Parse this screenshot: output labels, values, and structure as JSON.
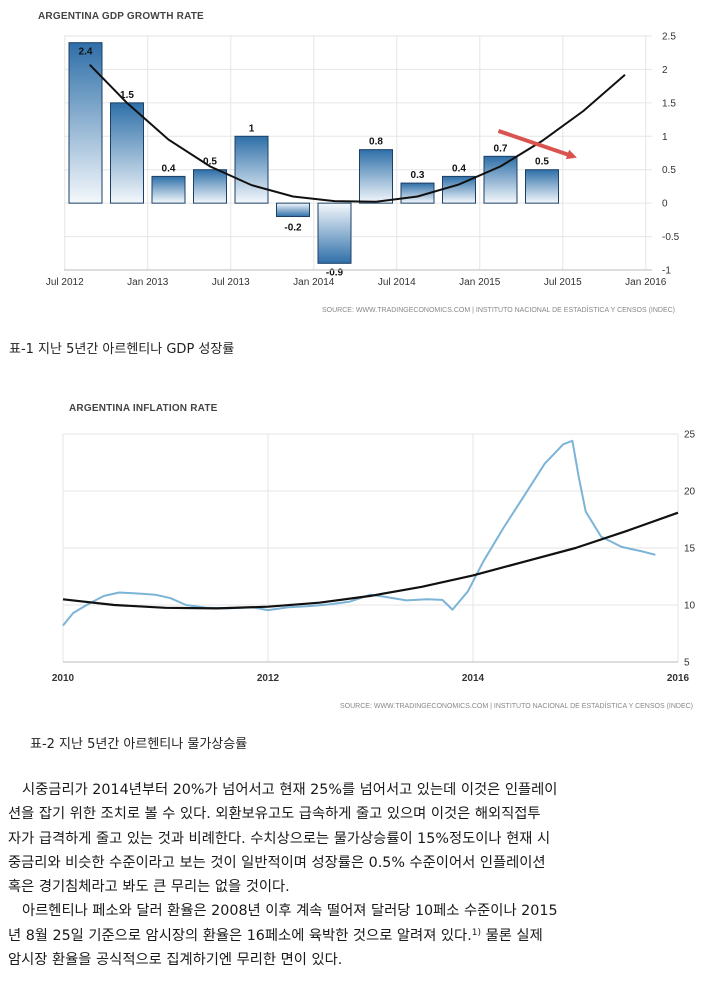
{
  "chart_data": [
    {
      "type": "bar",
      "title": "ARGENTINA GDP GROWTH RATE",
      "source": "SOURCE: WWW.TRADINGECONOMICS.COM | INSTITUTO NACIONAL DE ESTADÍSTICA Y CENSOS (INDEC)",
      "categories": [
        "2012 Q3",
        "2012 Q4",
        "2013 Q1",
        "2013 Q2",
        "2013 Q3",
        "2013 Q4",
        "2014 Q1",
        "2014 Q2",
        "2014 Q3",
        "2014 Q4",
        "2015 Q1",
        "2015 Q2"
      ],
      "values": [
        2.4,
        1.5,
        0.4,
        0.5,
        1,
        -0.2,
        -0.9,
        0.8,
        0.3,
        0.4,
        0.7,
        0.5
      ],
      "value_labels": [
        "2.4",
        "1.5",
        "0.4",
        "0.5",
        "1",
        "-0.2",
        "-0.9",
        "0.8",
        "0.3",
        "0.4",
        "0.7",
        "0.5"
      ],
      "trend_line": [
        {
          "x": 0.1,
          "y": 2.07
        },
        {
          "x": 1.0,
          "y": 1.5
        },
        {
          "x": 2.0,
          "y": 0.95
        },
        {
          "x": 3.0,
          "y": 0.55
        },
        {
          "x": 4.0,
          "y": 0.27
        },
        {
          "x": 5.0,
          "y": 0.1
        },
        {
          "x": 6.0,
          "y": 0.03
        },
        {
          "x": 7.0,
          "y": 0.02
        },
        {
          "x": 8.0,
          "y": 0.1
        },
        {
          "x": 9.0,
          "y": 0.28
        },
        {
          "x": 10.0,
          "y": 0.55
        },
        {
          "x": 11.0,
          "y": 0.93
        },
        {
          "x": 12.0,
          "y": 1.38
        },
        {
          "x": 13.0,
          "y": 1.92
        }
      ],
      "arrow": {
        "from": {
          "x": 9.95,
          "y": 1.08
        },
        "to": {
          "x": 11.75,
          "y": 0.7
        },
        "color": "#d9544f"
      },
      "x_tick_labels": [
        "Jul 2012",
        "Jan 2013",
        "Jul 2013",
        "Jan 2014",
        "Jul 2014",
        "Jan 2015",
        "Jul 2015",
        "Jan 2016"
      ],
      "x_tick_positions": [
        -0.5,
        1.5,
        3.5,
        5.5,
        7.5,
        9.5,
        11.5,
        13.5
      ],
      "y_ticks": [
        2.5,
        2,
        1.5,
        1,
        0.5,
        0,
        -0.5,
        -1
      ],
      "y_tick_labels": [
        "2.5",
        "2",
        "1.5",
        "1",
        "0.5",
        "0",
        "-0.5",
        "-1"
      ],
      "ylim": [
        -1,
        2.5
      ],
      "grid": true,
      "colors": {
        "bar_top": "#2e6fa8",
        "bar_bottom": "#f4f8fc",
        "trend": "#111111"
      }
    },
    {
      "type": "line",
      "title": "ARGENTINA INFLATION RATE",
      "source": "SOURCE: WWW.TRADINGECONOMICS.COM | INSTITUTO NACIONAL DE ESTADÍSTICA Y CENSOS (INDEC)",
      "series": [
        {
          "values": [
            {
              "x": 2010.0,
              "y": 8.2
            },
            {
              "x": 2010.1,
              "y": 9.3
            },
            {
              "x": 2010.25,
              "y": 10.1
            },
            {
              "x": 2010.4,
              "y": 10.8
            },
            {
              "x": 2010.55,
              "y": 11.1
            },
            {
              "x": 2010.75,
              "y": 11.0
            },
            {
              "x": 2010.9,
              "y": 10.9
            },
            {
              "x": 2011.05,
              "y": 10.6
            },
            {
              "x": 2011.2,
              "y": 10.0
            },
            {
              "x": 2011.4,
              "y": 9.75
            },
            {
              "x": 2011.6,
              "y": 9.7
            },
            {
              "x": 2011.85,
              "y": 9.8
            },
            {
              "x": 2012.0,
              "y": 9.55
            },
            {
              "x": 2012.2,
              "y": 9.8
            },
            {
              "x": 2012.4,
              "y": 9.9
            },
            {
              "x": 2012.6,
              "y": 10.05
            },
            {
              "x": 2012.8,
              "y": 10.3
            },
            {
              "x": 2013.0,
              "y": 10.9
            },
            {
              "x": 2013.15,
              "y": 10.7
            },
            {
              "x": 2013.35,
              "y": 10.4
            },
            {
              "x": 2013.55,
              "y": 10.5
            },
            {
              "x": 2013.7,
              "y": 10.45
            },
            {
              "x": 2013.8,
              "y": 9.6
            },
            {
              "x": 2013.95,
              "y": 11.2
            },
            {
              "x": 2014.1,
              "y": 13.8
            },
            {
              "x": 2014.3,
              "y": 16.8
            },
            {
              "x": 2014.5,
              "y": 19.6
            },
            {
              "x": 2014.7,
              "y": 22.4
            },
            {
              "x": 2014.88,
              "y": 24.1
            },
            {
              "x": 2014.97,
              "y": 24.4
            },
            {
              "x": 2015.03,
              "y": 21.3
            },
            {
              "x": 2015.1,
              "y": 18.2
            },
            {
              "x": 2015.25,
              "y": 16.0
            },
            {
              "x": 2015.45,
              "y": 15.1
            },
            {
              "x": 2015.65,
              "y": 14.7
            },
            {
              "x": 2015.78,
              "y": 14.4
            }
          ],
          "color": "#7bb4d6"
        },
        {
          "values": [
            {
              "x": 2010.0,
              "y": 10.5
            },
            {
              "x": 2010.5,
              "y": 10.0
            },
            {
              "x": 2011.0,
              "y": 9.75
            },
            {
              "x": 2011.5,
              "y": 9.7
            },
            {
              "x": 2012.0,
              "y": 9.85
            },
            {
              "x": 2012.5,
              "y": 10.2
            },
            {
              "x": 2013.0,
              "y": 10.8
            },
            {
              "x": 2013.5,
              "y": 11.6
            },
            {
              "x": 2014.0,
              "y": 12.6
            },
            {
              "x": 2014.5,
              "y": 13.8
            },
            {
              "x": 2015.0,
              "y": 15.0
            },
            {
              "x": 2015.5,
              "y": 16.5
            },
            {
              "x": 2016.0,
              "y": 18.1
            }
          ],
          "color": "#111111"
        }
      ],
      "x_tick_labels": [
        "2010",
        "2012",
        "2014",
        "2016"
      ],
      "x_ticks": [
        2010,
        2012,
        2014,
        2016
      ],
      "y_ticks": [
        25,
        20,
        15,
        10,
        5
      ],
      "y_tick_labels": [
        "25",
        "20",
        "15",
        "10",
        "5"
      ],
      "xlim": [
        2010,
        2016
      ],
      "ylim": [
        5,
        25
      ],
      "grid": true
    }
  ],
  "captions": {
    "caption1": "표-1 지난 5년간 아르헨티나 GDP 성장률",
    "caption2": "표-2 지난 5년간 아르헨티나 물가상승률"
  },
  "body": {
    "lines": [
      "시중금리가 2014년부터 20%가 넘어서고 현재 25%를 넘어서고 있는데 이것은 인플레이",
      "션을 잡기 위한 조치로 볼 수 있다. 외환보유고도 급속하게 줄고 있으며 이것은 해외직접투",
      "자가 급격하게 줄고 있는 것과 비례한다. 수치상으로는 물가상승률이 15%정도이나 현재 시",
      "중금리와 비슷한 수준이라고 보는 것이 일반적이며 성장률은 0.5% 수준이어서 인플레이션",
      "혹은 경기침체라고 봐도 큰 무리는 없을 것이다.",
      "아르헨티나 페소와 달러 환율은 2008년 이후 계속 떨어져 달러당 10페소 수준이나 2015",
      "년 8월 25일 기준으로 암시장의 환율은 16페소에 육박한 것으로 알려져 있다.",
      "물론 실제",
      "암시장 환율을 공식적으로 집계하기엔 무리한 면이 있다."
    ],
    "footnote_marker": "1)"
  }
}
